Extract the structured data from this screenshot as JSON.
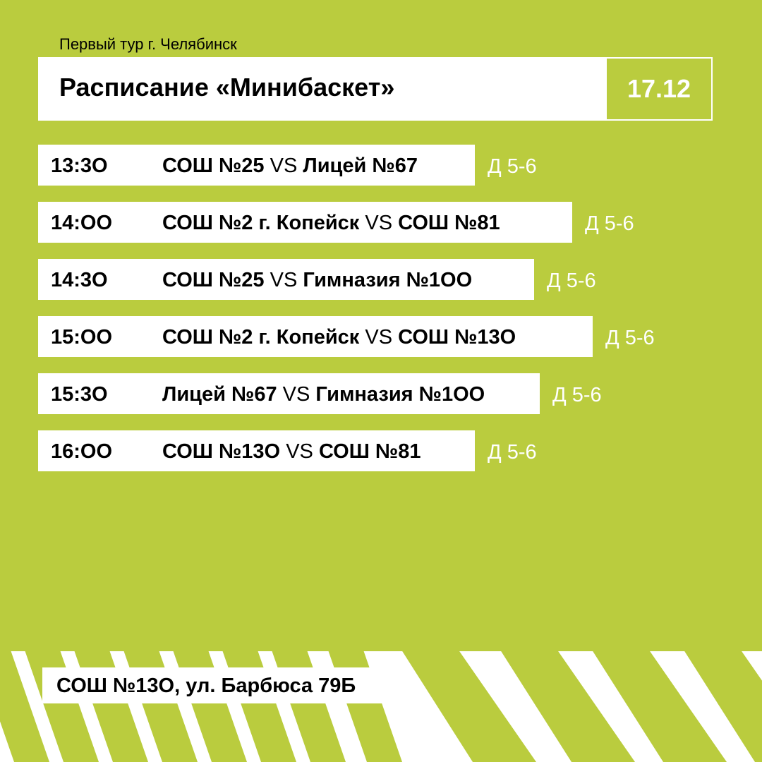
{
  "header": {
    "subtitle": "Первый тур г. Челябинск",
    "title": "Расписание «Минибаскет»",
    "date": "17.12"
  },
  "vs_label": "VS",
  "matches": [
    {
      "time": "13:3О",
      "team1": "СОШ №25",
      "team2": "Лицей №67",
      "division": "Д 5-6"
    },
    {
      "time": "14:ОО",
      "team1": "СОШ №2 г. Копейск",
      "team2": "СОШ №81",
      "division": "Д 5-6"
    },
    {
      "time": "14:3О",
      "team1": "СОШ №25",
      "team2": "Гимназия №1ОО",
      "division": "Д 5-6"
    },
    {
      "time": "15:ОО",
      "team1": "СОШ №2 г. Копейск",
      "team2": "СОШ №13О",
      "division": "Д 5-6"
    },
    {
      "time": "15:3О",
      "team1": "Лицей №67",
      "team2": "Гимназия №1ОО",
      "division": "Д 5-6"
    },
    {
      "time": "16:ОО",
      "team1": "СОШ №13О",
      "team2": "СОШ №81",
      "division": "Д 5-6"
    }
  ],
  "footer": {
    "address": "СОШ №13О, ул. Барбюса 79Б"
  },
  "colors": {
    "background": "#BACC3E",
    "panel": "#FFFFFF",
    "text": "#000000"
  }
}
